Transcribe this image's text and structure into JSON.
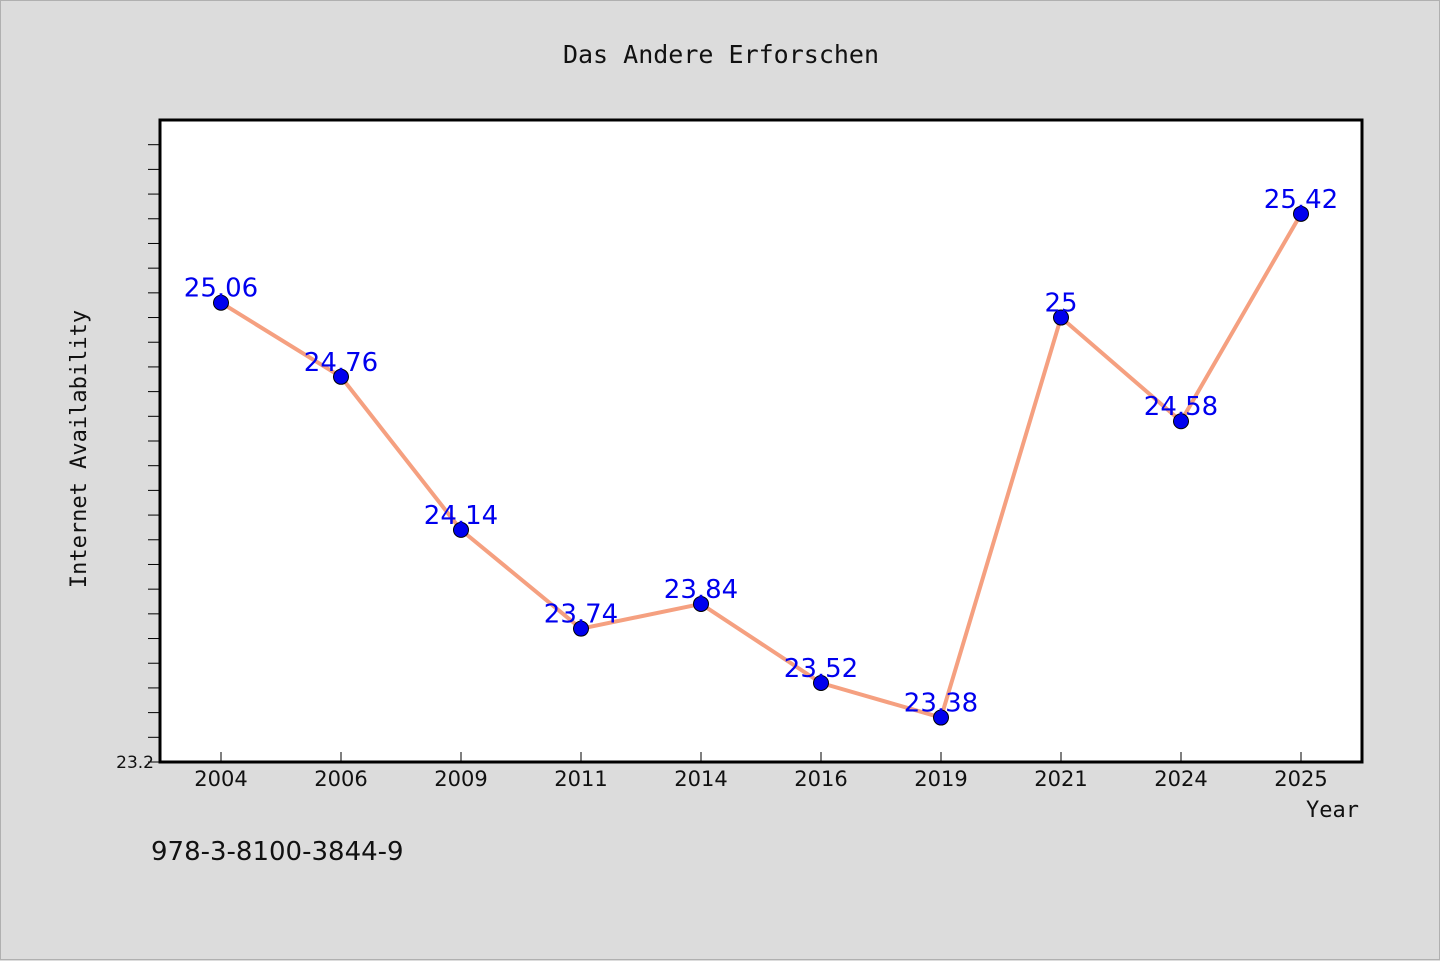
{
  "chart_data": {
    "type": "line",
    "title": "Das Andere Erforschen",
    "xlabel": "Year",
    "ylabel": "Internet Availability",
    "categories": [
      "2004",
      "2006",
      "2009",
      "2011",
      "2014",
      "2016",
      "2019",
      "2021",
      "2024",
      "2025"
    ],
    "series": [
      {
        "values": [
          25.06,
          24.76,
          24.14,
          23.74,
          23.84,
          23.52,
          23.38,
          25.0,
          24.58,
          25.42
        ],
        "labels": [
          "25.06",
          "24.76",
          "24.14",
          "23.74",
          "23.84",
          "23.52",
          "23.38",
          "25",
          "24.58",
          "25.42"
        ]
      }
    ],
    "ylim": [
      23.2,
      25.8
    ],
    "y_tick_labels": [
      "23.2"
    ],
    "grid": false,
    "colors": {
      "line": "#f5a080",
      "marker": "#0000ee",
      "label": "#0000ee",
      "background": "#dcdcdc",
      "plot_bg": "#ffffff"
    }
  },
  "footer_code": "978-3-8100-3844-9"
}
